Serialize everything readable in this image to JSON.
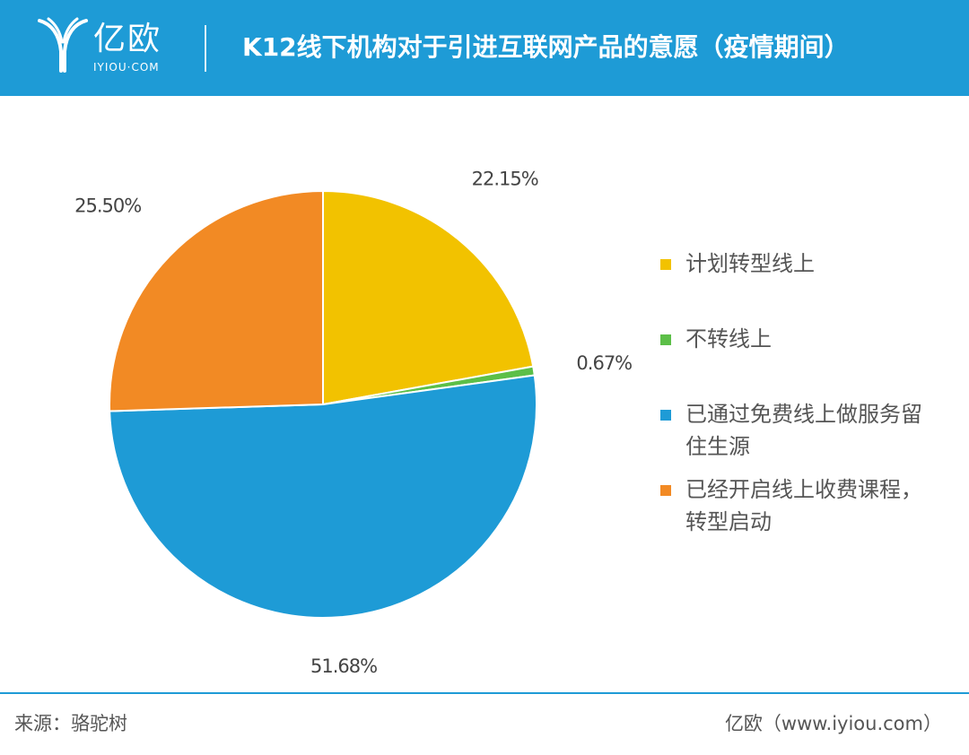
{
  "header": {
    "brand": "亿欧",
    "brand_sub": "IYIOU·COM",
    "title": "K12线下机构对于引进互联网产品的意愿（疫情期间）"
  },
  "chart_data": {
    "type": "pie",
    "title": "K12线下机构对于引进互联网产品的意愿（疫情期间）",
    "start_angle_deg": 0,
    "direction": "clockwise",
    "legend_position": "right",
    "slices": [
      {
        "name": "计划转型线上",
        "value": 22.15,
        "label": "22.15%",
        "color": "#f2c200"
      },
      {
        "name": "不转线上",
        "value": 0.67,
        "label": "0.67%",
        "color": "#5cbf48"
      },
      {
        "name": "已通过免费线上做服务留住生源",
        "value": 51.68,
        "label": "51.68%",
        "color": "#1e9bd6"
      },
      {
        "name": "已经开启线上收费课程，转型启动",
        "value": 25.5,
        "label": "25.50%",
        "color": "#f28a24"
      }
    ]
  },
  "legend": [
    {
      "lines": [
        "计划转型线上"
      ],
      "color": "#f2c200"
    },
    {
      "lines": [
        "不转线上"
      ],
      "color": "#5cbf48"
    },
    {
      "lines": [
        "已通过免费线上做服务留",
        "住生源"
      ],
      "color": "#1e9bd6"
    },
    {
      "lines": [
        "已经开启线上收费课程，",
        "转型启动"
      ],
      "color": "#f28a24"
    }
  ],
  "footer": {
    "source": "来源：骆驼树",
    "credit": "亿欧（www.iyiou.com）"
  }
}
